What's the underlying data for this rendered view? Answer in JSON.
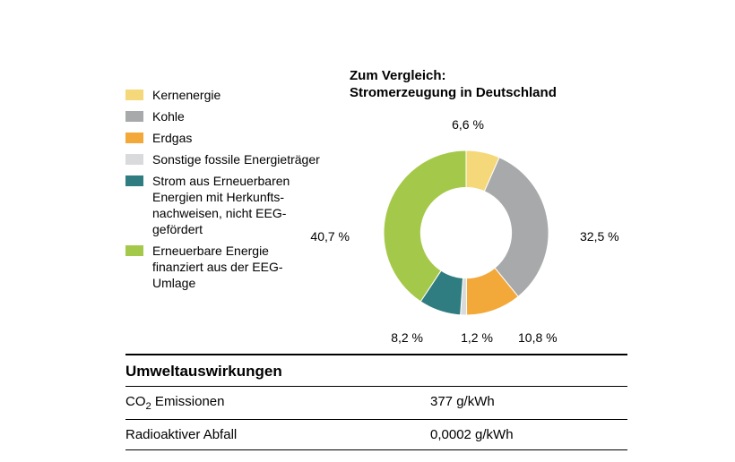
{
  "chart": {
    "type": "donut",
    "title_line1": "Zum Vergleich:",
    "title_line2": "Stromerzeugung in Deutschland",
    "title_fontsize": 15,
    "title_weight": "bold",
    "inner_radius_ratio": 0.55,
    "background_color": "#ffffff",
    "start_angle_deg": -90,
    "slices": [
      {
        "key": "kernenergie",
        "value": 6.6,
        "label": "6,6 %",
        "color": "#f4d87a"
      },
      {
        "key": "kohle",
        "value": 32.5,
        "label": "32,5 %",
        "color": "#a7a9ab"
      },
      {
        "key": "erdgas",
        "value": 10.8,
        "label": "10,8 %",
        "color": "#f3a83a"
      },
      {
        "key": "sonstige",
        "value": 1.2,
        "label": "1,2 %",
        "color": "#d9dadb"
      },
      {
        "key": "ee_hkn",
        "value": 8.2,
        "label": "8,2 %",
        "color": "#2f7d80"
      },
      {
        "key": "ee_eeg",
        "value": 40.7,
        "label": "40,7 %",
        "color": "#a4c94a"
      }
    ],
    "label_fontsize": 14,
    "stroke_color": "#ffffff",
    "stroke_width": 1
  },
  "legend": {
    "items": [
      {
        "color": "#f4d87a",
        "label": "Kernenergie"
      },
      {
        "color": "#a7a9ab",
        "label": "Kohle"
      },
      {
        "color": "#f3a83a",
        "label": "Erdgas"
      },
      {
        "color": "#d9dadb",
        "label": "Sonstige fossile Energieträger"
      },
      {
        "color": "#2f7d80",
        "label": "Strom aus Erneuerbaren Energien mit Herkunfts­nachweisen, nicht EEG-gefördert"
      },
      {
        "color": "#a4c94a",
        "label": "Erneuerbare Energie finanziert aus der EEG-Umlage"
      }
    ],
    "swatch_w": 20,
    "swatch_h": 12,
    "fontsize": 14
  },
  "env": {
    "heading": "Umweltauswirkungen",
    "rows": [
      {
        "key_html": "CO₂ Emissionen",
        "value": "377 g/kWh"
      },
      {
        "key_html": "Radioaktiver Abfall",
        "value": "0,0002 g/kWh"
      }
    ],
    "heading_fontsize": 17,
    "row_fontsize": 15,
    "rule_color": "#000000"
  }
}
